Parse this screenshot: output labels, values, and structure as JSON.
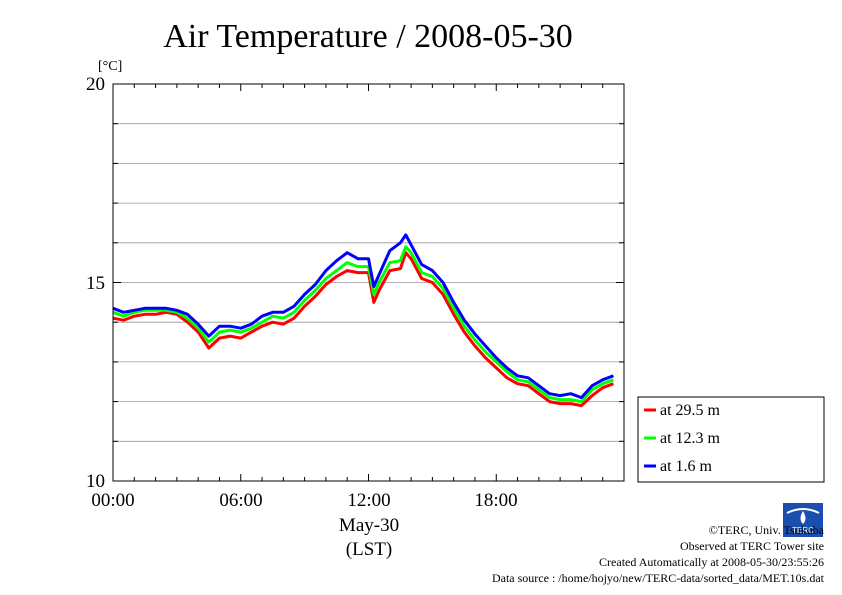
{
  "chart_data": {
    "type": "line",
    "title": "Air Temperature / 2008-05-30",
    "y_unit": "[°C]",
    "ylim": [
      10,
      20
    ],
    "yticks": [
      "10",
      "15",
      "20"
    ],
    "xlim": [
      0,
      24
    ],
    "xticks": [
      "00:00",
      "06:00",
      "12:00",
      "18:00"
    ],
    "xlabel_date": "May-30",
    "xlabel": "(LST)",
    "grid": true,
    "legend_position": "right-bottom-outside",
    "x": [
      0,
      0.5,
      1,
      1.5,
      2,
      2.5,
      3,
      3.5,
      4,
      4.5,
      5,
      5.5,
      6,
      6.5,
      7,
      7.5,
      8,
      8.5,
      9,
      9.5,
      10,
      10.5,
      11,
      11.5,
      12,
      12.25,
      12.5,
      13,
      13.5,
      13.75,
      14,
      14.5,
      15,
      15.5,
      16,
      16.5,
      17,
      17.5,
      18,
      18.5,
      19,
      19.5,
      20,
      20.5,
      21,
      21.5,
      22,
      22.5,
      23,
      23.5
    ],
    "series": [
      {
        "name": "at 29.5 m",
        "color": "#ff0000",
        "values": [
          14.1,
          14.05,
          14.15,
          14.2,
          14.2,
          14.25,
          14.2,
          14.0,
          13.75,
          13.35,
          13.6,
          13.65,
          13.6,
          13.75,
          13.9,
          14.0,
          13.95,
          14.1,
          14.4,
          14.65,
          14.95,
          15.15,
          15.3,
          15.25,
          15.25,
          14.5,
          14.8,
          15.3,
          15.35,
          15.75,
          15.6,
          15.1,
          15.0,
          14.7,
          14.2,
          13.75,
          13.4,
          13.1,
          12.85,
          12.6,
          12.45,
          12.4,
          12.2,
          12.0,
          11.95,
          11.95,
          11.9,
          12.15,
          12.35,
          12.45
        ]
      },
      {
        "name": "at 12.3 m",
        "color": "#00ff00",
        "values": [
          14.25,
          14.15,
          14.25,
          14.3,
          14.3,
          14.3,
          14.25,
          14.1,
          13.85,
          13.5,
          13.75,
          13.8,
          13.75,
          13.85,
          14.0,
          14.15,
          14.1,
          14.25,
          14.55,
          14.8,
          15.1,
          15.3,
          15.5,
          15.4,
          15.4,
          14.7,
          15.0,
          15.5,
          15.55,
          15.9,
          15.75,
          15.25,
          15.15,
          14.85,
          14.35,
          13.9,
          13.55,
          13.25,
          13.0,
          12.75,
          12.55,
          12.5,
          12.3,
          12.1,
          12.05,
          12.05,
          12.0,
          12.3,
          12.45,
          12.55
        ]
      },
      {
        "name": "at 1.6 m",
        "color": "#0000ff",
        "values": [
          14.35,
          14.25,
          14.3,
          14.35,
          14.35,
          14.35,
          14.3,
          14.2,
          13.95,
          13.65,
          13.9,
          13.9,
          13.85,
          13.95,
          14.15,
          14.25,
          14.25,
          14.4,
          14.7,
          14.95,
          15.3,
          15.55,
          15.75,
          15.6,
          15.6,
          14.9,
          15.2,
          15.8,
          16.0,
          16.2,
          15.95,
          15.45,
          15.3,
          15.0,
          14.5,
          14.05,
          13.7,
          13.4,
          13.1,
          12.85,
          12.65,
          12.6,
          12.4,
          12.2,
          12.15,
          12.2,
          12.1,
          12.4,
          12.55,
          12.65
        ]
      }
    ]
  },
  "credits": [
    "©TERC, Univ. Tsukuba",
    "Observed at TERC Tower site",
    "Created Automatically at 2008-05-30/23:55:26",
    "Data source : /home/hojyo/new/TERC-data/sorted_data/MET.10s.dat"
  ],
  "logo_text": "TERC"
}
